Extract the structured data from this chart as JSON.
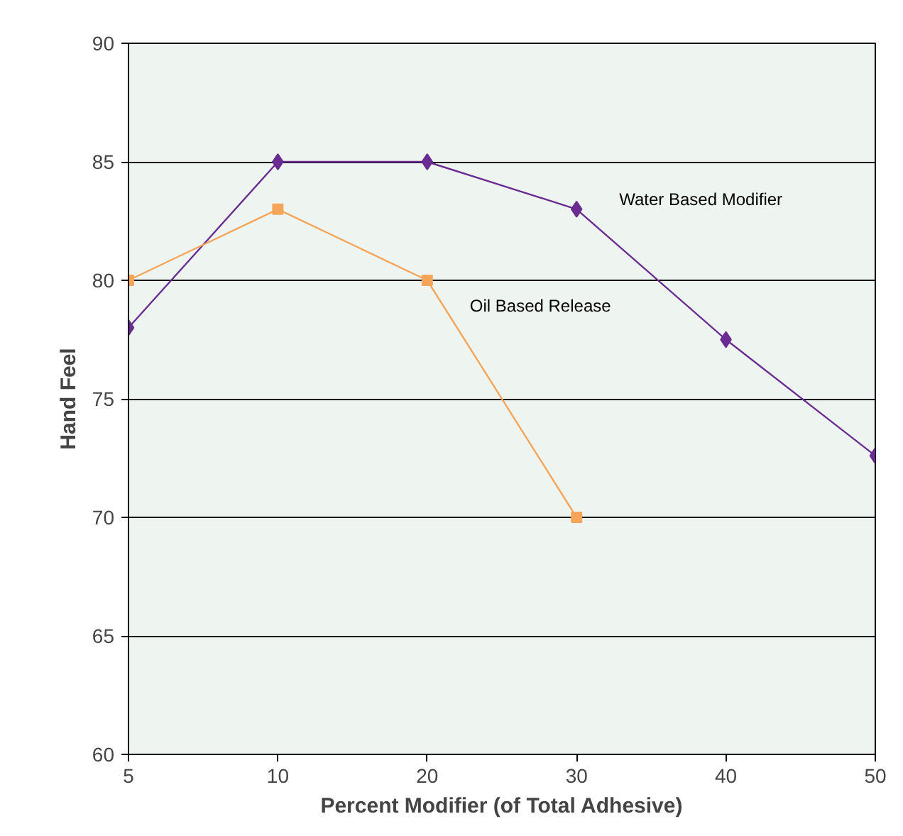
{
  "chart_data": {
    "type": "line",
    "xlabel": "Percent Modifier (of Total Adhesive)",
    "ylabel": "Hand Feel",
    "categories": [
      "5",
      "10",
      "20",
      "30",
      "40",
      "50"
    ],
    "series": [
      {
        "name": "Water Based Modifier",
        "color": "#6a2c91",
        "marker": "diamond",
        "values": [
          78,
          85,
          85,
          83,
          77.5,
          72.6
        ]
      },
      {
        "name": "Oil Based Release",
        "color": "#f5a55a",
        "marker": "square",
        "values": [
          80,
          83,
          80,
          70,
          null,
          null
        ]
      }
    ],
    "ylim": [
      60,
      90
    ],
    "yticks": [
      60,
      65,
      70,
      75,
      80,
      85,
      90
    ],
    "grid": "y"
  }
}
